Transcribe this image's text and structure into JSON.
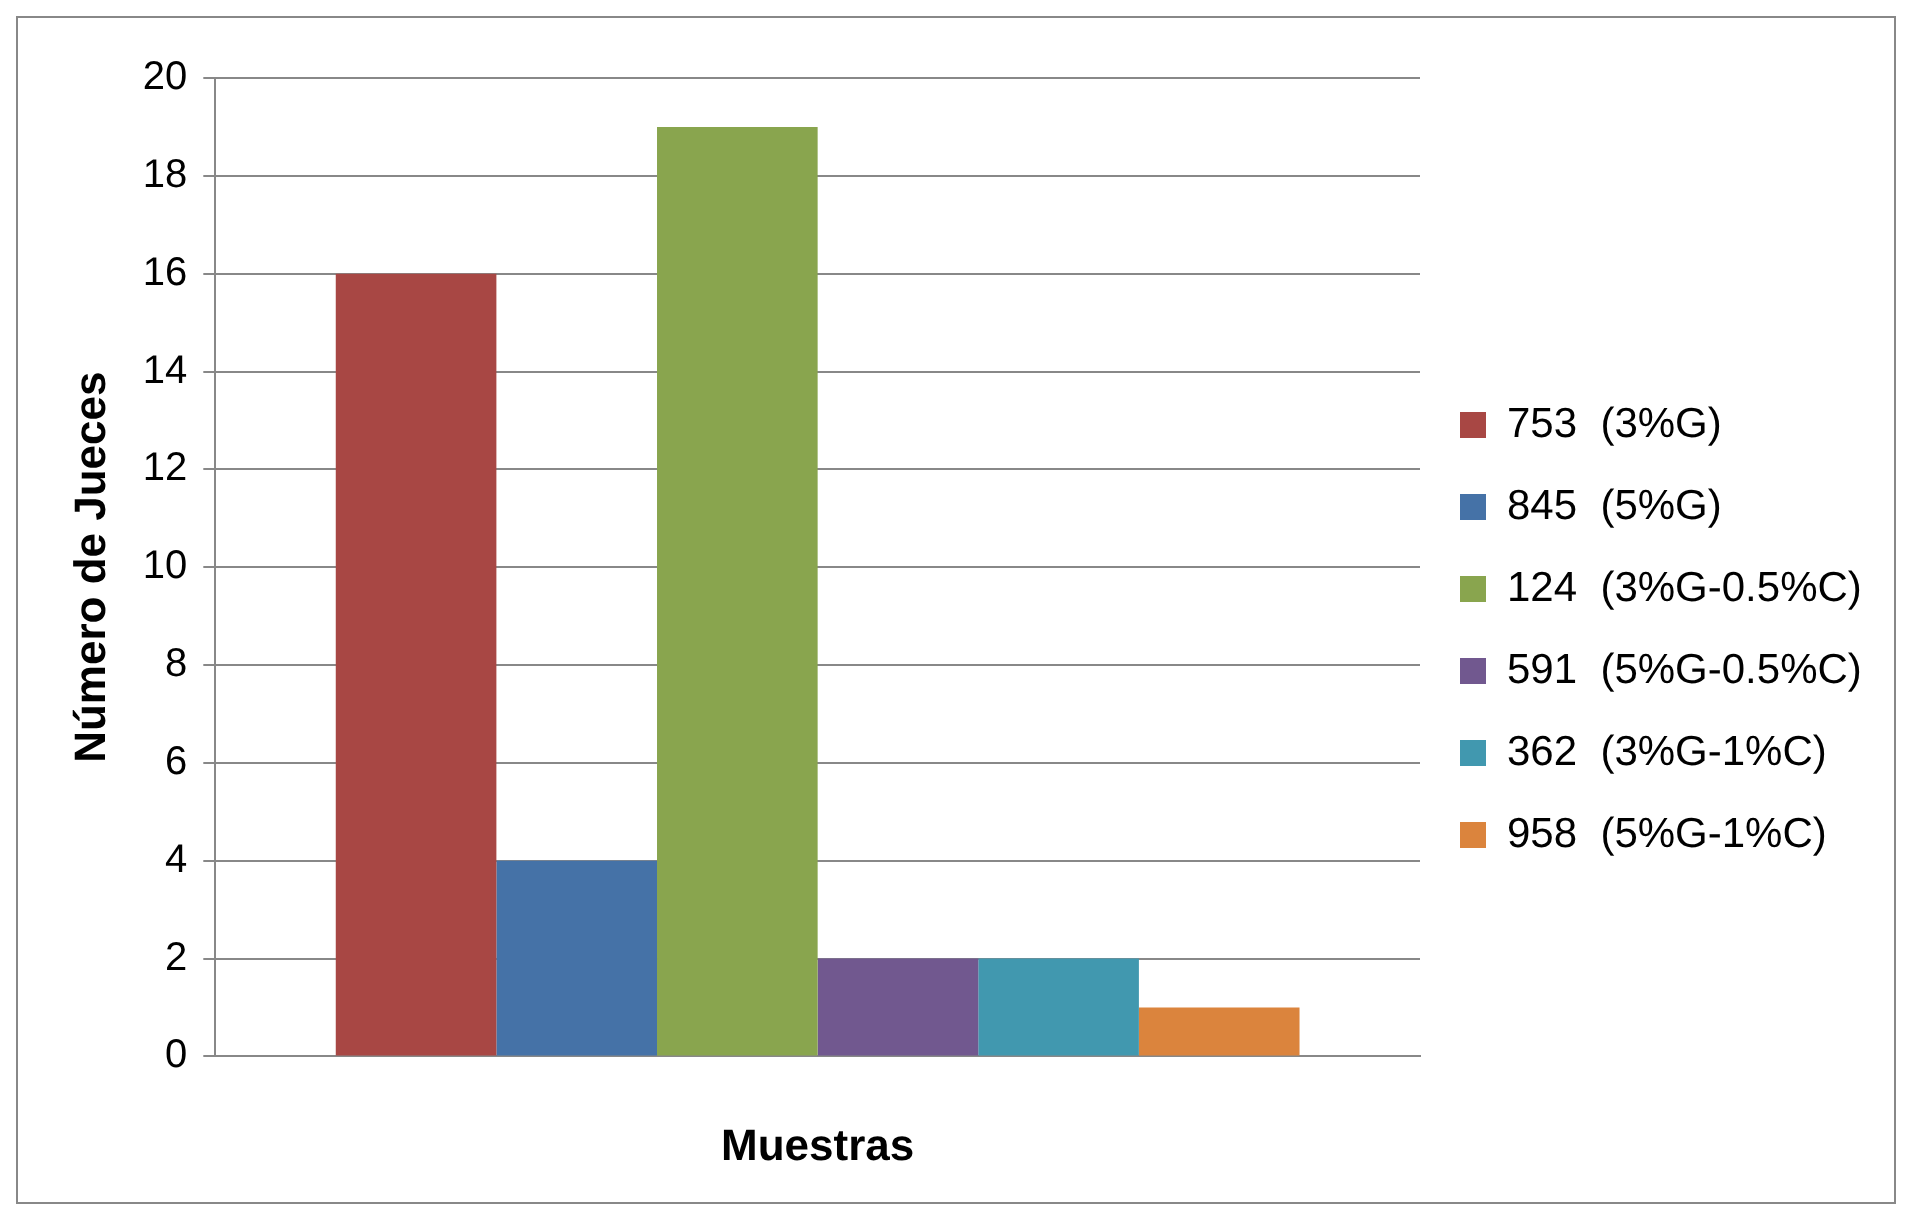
{
  "chart_data": {
    "type": "bar",
    "categories": [
      null
    ],
    "xlabel": "Muestras",
    "ylabel": "Número de Jueces",
    "ylim": [
      0,
      20
    ],
    "yticks": [
      0,
      2,
      4,
      6,
      8,
      10,
      12,
      14,
      16,
      18,
      20
    ],
    "grid": "y",
    "legend": "right",
    "series": [
      {
        "name": "753  (3%G)",
        "color": "#a84744",
        "values": [
          16
        ]
      },
      {
        "name": "845  (5%G)",
        "color": "#4572a7",
        "values": [
          4
        ]
      },
      {
        "name": "124  (3%G-0.5%C)",
        "color": "#89a54e",
        "values": [
          19
        ]
      },
      {
        "name": "591  (5%G-0.5%C)",
        "color": "#71588f",
        "values": [
          2
        ]
      },
      {
        "name": "362  (3%G-1%C)",
        "color": "#4198af",
        "values": [
          2
        ]
      },
      {
        "name": "958  (5%G-1%C)",
        "color": "#db843d",
        "values": [
          1
        ]
      }
    ]
  }
}
